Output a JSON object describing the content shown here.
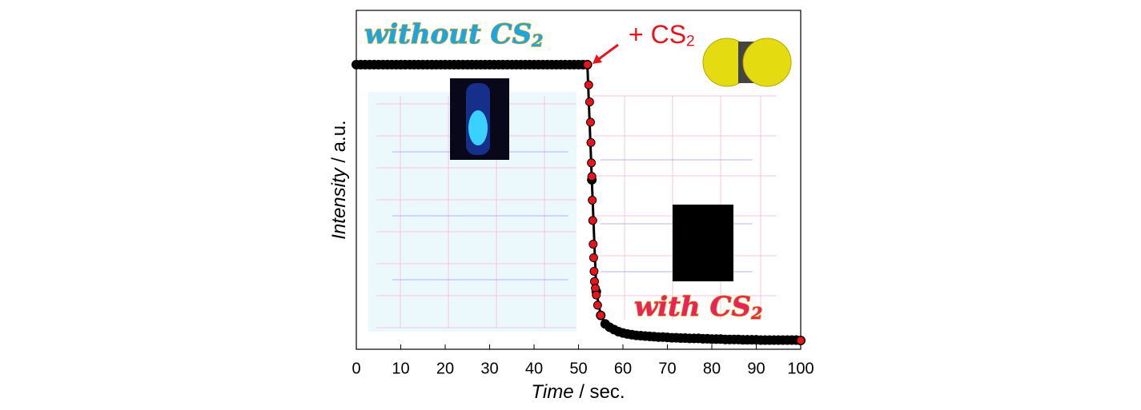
{
  "chart_data": {
    "type": "scatter",
    "xlabel": {
      "italic": "Time",
      "rest": " / sec."
    },
    "ylabel": {
      "italic": "Intensity",
      "rest": " / a.u."
    },
    "annotations": [
      {
        "text": "without CS",
        "subscript": "2",
        "color": "#1aa6e0"
      },
      {
        "text": "+ CS",
        "subscript": "2",
        "color": "#e8141c"
      },
      {
        "text": "with CS",
        "subscript": "2",
        "color": "#e8235a"
      }
    ],
    "xlim": [
      0,
      100
    ],
    "xticks": [
      0,
      10,
      20,
      30,
      40,
      50,
      60,
      70,
      80,
      90,
      100
    ],
    "ylim": [
      0,
      1
    ],
    "series": [
      {
        "color": "#000000",
        "x": [
          0,
          1,
          2,
          3,
          4,
          5,
          6,
          7,
          8,
          9,
          10,
          11,
          12,
          13,
          14,
          15,
          16,
          17,
          18,
          19,
          20,
          21,
          22,
          23,
          24,
          25,
          26,
          27,
          28,
          29,
          30,
          31,
          32,
          33,
          34,
          35,
          36,
          37,
          38,
          39,
          40,
          41,
          42,
          43,
          44,
          45,
          46,
          47,
          48,
          49,
          50,
          51,
          52,
          53,
          54,
          55,
          56,
          57,
          58,
          59,
          60,
          61,
          62,
          63,
          64,
          65,
          66,
          67,
          68,
          69,
          70,
          71,
          72,
          73,
          74,
          75,
          76,
          77,
          78,
          79,
          80,
          81,
          82,
          83,
          84,
          85,
          86,
          87,
          88,
          89,
          90,
          91,
          92,
          93,
          94,
          95,
          96,
          97,
          98,
          99,
          100
        ],
        "values": [
          0.84,
          0.84,
          0.84,
          0.84,
          0.84,
          0.84,
          0.84,
          0.84,
          0.84,
          0.84,
          0.84,
          0.84,
          0.84,
          0.84,
          0.84,
          0.84,
          0.84,
          0.84,
          0.84,
          0.84,
          0.84,
          0.84,
          0.84,
          0.84,
          0.84,
          0.84,
          0.84,
          0.84,
          0.84,
          0.84,
          0.84,
          0.84,
          0.84,
          0.84,
          0.84,
          0.84,
          0.84,
          0.84,
          0.84,
          0.84,
          0.84,
          0.84,
          0.84,
          0.84,
          0.84,
          0.84,
          0.84,
          0.84,
          0.84,
          0.84,
          0.84,
          0.84,
          0.84,
          0.5,
          0.17,
          0.1,
          0.075,
          0.065,
          0.058,
          0.052,
          0.048,
          0.045,
          0.043,
          0.041,
          0.04,
          0.039,
          0.038,
          0.037,
          0.036,
          0.036,
          0.035,
          0.034,
          0.034,
          0.033,
          0.033,
          0.032,
          0.032,
          0.032,
          0.031,
          0.031,
          0.03,
          0.03,
          0.03,
          0.029,
          0.029,
          0.029,
          0.029,
          0.028,
          0.028,
          0.028,
          0.028,
          0.027,
          0.027,
          0.027,
          0.027,
          0.027,
          0.027,
          0.027,
          0.027,
          0.027,
          0.026
        ]
      },
      {
        "color": "#e8141c",
        "x": [
          52,
          52.3,
          52.5,
          52.7,
          52.8,
          52.9,
          53.0,
          53.1,
          53.2,
          53.3,
          53.4,
          53.5,
          53.6,
          53.8,
          54,
          54.3,
          55,
          100
        ],
        "values": [
          0.84,
          0.78,
          0.73,
          0.67,
          0.61,
          0.55,
          0.51,
          0.44,
          0.38,
          0.31,
          0.27,
          0.23,
          0.2,
          0.18,
          0.16,
          0.13,
          0.1,
          0.026
        ]
      }
    ]
  }
}
